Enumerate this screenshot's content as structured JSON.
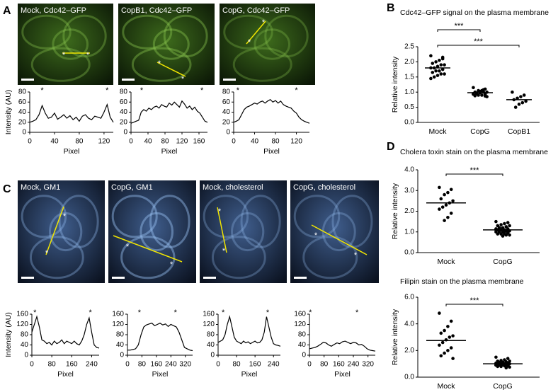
{
  "panel_labels": [
    "A",
    "B",
    "C",
    "D"
  ],
  "images": [
    {
      "caption": "Mock, Cdc42–GFP",
      "marker": "*"
    },
    {
      "caption": "CopB1, Cdc42–GFP",
      "marker": "*"
    },
    {
      "caption": "CopG, Cdc42–GFP",
      "marker": "*"
    },
    {
      "caption": "Mock, GM1",
      "marker": "*"
    },
    {
      "caption": "CopG, GM1",
      "marker": "*"
    },
    {
      "caption": "Mock, cholesterol",
      "marker": "*"
    },
    {
      "caption": "CopG, cholesterol",
      "marker": "*"
    }
  ],
  "chart_data": [
    {
      "type": "line",
      "ylabel": "Intensity (AU)",
      "xlabel": "Pixel",
      "xlim": [
        0,
        135
      ],
      "xticks": [
        0,
        40,
        80,
        120
      ],
      "ylim": [
        0,
        80
      ],
      "yticks": [
        0,
        20,
        40,
        60,
        80
      ],
      "color": "#000000",
      "x": [
        0,
        5,
        10,
        15,
        20,
        25,
        30,
        35,
        40,
        45,
        50,
        55,
        60,
        65,
        70,
        75,
        80,
        85,
        90,
        95,
        100,
        105,
        110,
        115,
        120,
        125,
        130,
        135
      ],
      "values": [
        20,
        22,
        25,
        35,
        53,
        38,
        28,
        30,
        38,
        26,
        30,
        35,
        28,
        33,
        25,
        30,
        22,
        32,
        35,
        28,
        25,
        32,
        30,
        28,
        40,
        55,
        30,
        20
      ],
      "markers": [
        {
          "x": 20,
          "text": "*"
        },
        {
          "x": 125,
          "text": "*"
        }
      ]
    },
    {
      "type": "line",
      "xlabel": "Pixel",
      "xlim": [
        0,
        180
      ],
      "xticks": [
        0,
        40,
        80,
        120,
        160
      ],
      "ylim": [
        0,
        80
      ],
      "yticks": [
        0,
        20,
        40,
        60,
        80
      ],
      "color": "#000000",
      "x": [
        0,
        6,
        12,
        18,
        24,
        30,
        36,
        42,
        48,
        54,
        60,
        66,
        72,
        78,
        84,
        90,
        96,
        102,
        108,
        114,
        120,
        126,
        132,
        138,
        144,
        150,
        156,
        162,
        168,
        174,
        180
      ],
      "values": [
        18,
        20,
        22,
        24,
        40,
        45,
        42,
        48,
        45,
        50,
        52,
        48,
        55,
        52,
        50,
        58,
        54,
        60,
        55,
        50,
        62,
        56,
        48,
        52,
        45,
        50,
        42,
        38,
        30,
        22,
        20
      ],
      "markers": [
        {
          "x": 25,
          "text": "*"
        },
        {
          "x": 167,
          "text": "*"
        }
      ]
    },
    {
      "type": "line",
      "xlabel": "Pixel",
      "xlim": [
        0,
        145
      ],
      "xticks": [
        0,
        40,
        80,
        120
      ],
      "ylim": [
        0,
        80
      ],
      "yticks": [
        0,
        20,
        40,
        60,
        80
      ],
      "color": "#000000",
      "x": [
        0,
        5,
        10,
        15,
        20,
        25,
        30,
        35,
        40,
        45,
        50,
        55,
        60,
        65,
        70,
        75,
        80,
        85,
        90,
        95,
        100,
        105,
        110,
        115,
        120,
        125,
        130,
        135,
        140,
        145
      ],
      "values": [
        20,
        22,
        25,
        35,
        45,
        50,
        52,
        55,
        58,
        56,
        60,
        62,
        58,
        62,
        65,
        60,
        63,
        58,
        62,
        55,
        52,
        50,
        48,
        42,
        38,
        30,
        25,
        22,
        20,
        18
      ],
      "markers": [
        {
          "x": 8,
          "text": "*"
        },
        {
          "x": 120,
          "text": "*"
        }
      ]
    },
    {
      "type": "dot",
      "title": "Cdc42–GFP signal on the plasma membrane",
      "ylabel": "Relative intensity",
      "categories": [
        "Mock",
        "CopG",
        "CopB1"
      ],
      "ylim": [
        0,
        2.5
      ],
      "yticks": [
        {
          "value": 0,
          "label": "0.0"
        },
        0.5,
        {
          "value": 1,
          "label": "1.0"
        },
        1.5,
        {
          "value": 2,
          "label": "2.0"
        },
        2.5
      ],
      "color": "#000000",
      "groups": [
        {
          "values": [
            2.2,
            2.1,
            2.05,
            2.0,
            1.95,
            1.9,
            1.9,
            1.85,
            1.8,
            1.8,
            1.75,
            1.7,
            1.7,
            1.65,
            1.6,
            1.6,
            1.55,
            1.5,
            1.45,
            2.15
          ],
          "mean": 1.8
        },
        {
          "values": [
            1.15,
            1.1,
            1.05,
            1.05,
            1.0,
            1.0,
            1.0,
            0.98,
            0.95,
            0.95,
            0.92,
            0.9,
            0.9,
            0.88,
            0.85,
            1.08,
            1.02,
            0.97,
            0.93,
            0.87
          ],
          "mean": 0.98
        },
        {
          "values": [
            1.0,
            0.9,
            0.85,
            0.8,
            0.75,
            0.7,
            0.65,
            0.6,
            0.5
          ],
          "mean": 0.75
        }
      ],
      "significance": [
        {
          "label": "***",
          "categories": [
            "Mock",
            "CopG"
          ]
        },
        {
          "label": "***",
          "categories": [
            "Mock",
            "CopB1"
          ]
        }
      ]
    },
    {
      "type": "line",
      "ylabel": "Intensity (AU)",
      "xlabel": "Pixel",
      "xlim": [
        0,
        270
      ],
      "xticks": [
        0,
        80,
        160,
        240
      ],
      "ylim": [
        0,
        160
      ],
      "yticks": [
        0,
        40,
        80,
        120,
        160
      ],
      "color": "#000000",
      "x": [
        0,
        10,
        20,
        30,
        40,
        50,
        60,
        70,
        80,
        90,
        100,
        110,
        120,
        130,
        140,
        150,
        160,
        170,
        180,
        190,
        200,
        210,
        220,
        230,
        240,
        250,
        260,
        270
      ],
      "values": [
        90,
        120,
        150,
        110,
        60,
        55,
        45,
        50,
        40,
        55,
        45,
        50,
        60,
        45,
        55,
        50,
        45,
        55,
        45,
        40,
        55,
        80,
        120,
        145,
        90,
        40,
        30,
        28
      ],
      "markers": [
        {
          "x": 12,
          "text": "*"
        },
        {
          "x": 235,
          "text": "*"
        }
      ]
    },
    {
      "type": "line",
      "xlabel": "Pixel",
      "xlim": [
        0,
        360
      ],
      "xticks": [
        0,
        80,
        160,
        240,
        320
      ],
      "ylim": [
        0,
        160
      ],
      "yticks": [
        0,
        40,
        80,
        120,
        160
      ],
      "color": "#000000",
      "x": [
        0,
        15,
        30,
        45,
        60,
        75,
        90,
        105,
        120,
        135,
        150,
        165,
        180,
        195,
        210,
        225,
        240,
        255,
        270,
        285,
        300,
        315,
        330,
        345,
        360
      ],
      "values": [
        20,
        20,
        22,
        25,
        40,
        80,
        110,
        118,
        122,
        125,
        115,
        120,
        125,
        118,
        122,
        112,
        120,
        115,
        110,
        90,
        60,
        30,
        25,
        20,
        18
      ],
      "markers": [
        {
          "x": 66,
          "text": "*"
        },
        {
          "x": 265,
          "text": "*"
        }
      ]
    },
    {
      "type": "line",
      "xlabel": "Pixel",
      "xlim": [
        0,
        270
      ],
      "xticks": [
        0,
        80,
        160,
        240
      ],
      "ylim": [
        0,
        160
      ],
      "yticks": [
        0,
        40,
        80,
        120,
        160
      ],
      "color": "#000000",
      "x": [
        0,
        10,
        20,
        30,
        40,
        50,
        60,
        70,
        80,
        90,
        100,
        110,
        120,
        130,
        140,
        150,
        160,
        170,
        180,
        190,
        200,
        210,
        220,
        230,
        240,
        250,
        260,
        270
      ],
      "values": [
        50,
        55,
        60,
        80,
        120,
        150,
        110,
        70,
        55,
        50,
        45,
        55,
        48,
        52,
        45,
        50,
        55,
        48,
        50,
        60,
        90,
        150,
        110,
        70,
        45,
        40,
        38,
        35
      ],
      "markers": [
        {
          "x": 22,
          "text": "*"
        },
        {
          "x": 215,
          "text": "*"
        }
      ]
    },
    {
      "type": "line",
      "xlabel": "Pixel",
      "xlim": [
        0,
        360
      ],
      "xticks": [
        0,
        80,
        160,
        240,
        320
      ],
      "ylim": [
        0,
        160
      ],
      "yticks": [
        0,
        40,
        80,
        120,
        160
      ],
      "color": "#000000",
      "x": [
        0,
        15,
        30,
        45,
        60,
        75,
        90,
        105,
        120,
        135,
        150,
        165,
        180,
        195,
        210,
        225,
        240,
        255,
        270,
        285,
        300,
        315,
        330,
        345,
        360
      ],
      "values": [
        25,
        28,
        30,
        35,
        42,
        50,
        48,
        40,
        35,
        42,
        48,
        45,
        52,
        55,
        50,
        45,
        50,
        48,
        40,
        42,
        35,
        25,
        20,
        18,
        16
      ],
      "markers": [
        {
          "x": 5,
          "text": "*"
        },
        {
          "x": 260,
          "text": "*"
        }
      ]
    },
    {
      "type": "dot",
      "title": "Cholera toxin stain on the plasma membrane",
      "ylabel": "Relative intensity",
      "categories": [
        "Mock",
        "CopG"
      ],
      "ylim": [
        0,
        4
      ],
      "yticks": [
        {
          "value": 0,
          "label": "0.0"
        },
        {
          "value": 1,
          "label": "1.0"
        },
        {
          "value": 2,
          "label": "2.0"
        },
        {
          "value": 3,
          "label": "3.0"
        },
        {
          "value": 4,
          "label": "4.0"
        }
      ],
      "color": "#000000",
      "groups": [
        {
          "values": [
            3.15,
            3.05,
            2.9,
            2.8,
            2.6,
            2.5,
            2.4,
            2.3,
            2.2,
            2.1,
            1.9,
            1.7,
            1.55
          ],
          "mean": 2.4
        },
        {
          "values": [
            1.5,
            1.45,
            1.4,
            1.35,
            1.3,
            1.3,
            1.25,
            1.2,
            1.2,
            1.15,
            1.15,
            1.1,
            1.1,
            1.1,
            1.05,
            1.05,
            1.0,
            1.0,
            1.0,
            0.95,
            0.95,
            0.9,
            0.9,
            0.85,
            0.85,
            0.8,
            1.2,
            1.1,
            1.0,
            0.9
          ],
          "mean": 1.1
        }
      ],
      "significance": [
        {
          "label": "***",
          "categories": [
            "Mock",
            "CopG"
          ]
        }
      ]
    },
    {
      "type": "dot",
      "title": "Filipin stain on the plasma membrane",
      "ylabel": "Relative intensity",
      "categories": [
        "Mock",
        "CopG"
      ],
      "ylim": [
        0,
        6
      ],
      "yticks": [
        {
          "value": 0,
          "label": "0.0"
        },
        {
          "value": 2,
          "label": "2.0"
        },
        {
          "value": 4,
          "label": "4.0"
        },
        {
          "value": 6,
          "label": "6.0"
        }
      ],
      "color": "#000000",
      "groups": [
        {
          "values": [
            4.8,
            4.2,
            3.8,
            3.5,
            3.3,
            3.1,
            3.0,
            2.8,
            2.6,
            2.4,
            2.2,
            2.0,
            1.8,
            1.6,
            1.4
          ],
          "mean": 2.75
        },
        {
          "values": [
            1.5,
            1.4,
            1.3,
            1.25,
            1.2,
            1.2,
            1.15,
            1.1,
            1.1,
            1.05,
            1.05,
            1.0,
            1.0,
            1.0,
            1.0,
            0.95,
            0.95,
            0.9,
            0.9,
            0.85,
            0.85,
            0.8,
            0.8,
            0.75,
            0.7,
            1.1,
            1.0,
            0.9,
            1.0,
            0.95
          ],
          "mean": 1.0
        }
      ],
      "significance": [
        {
          "label": "***",
          "categories": [
            "Mock",
            "CopG"
          ]
        }
      ]
    }
  ]
}
